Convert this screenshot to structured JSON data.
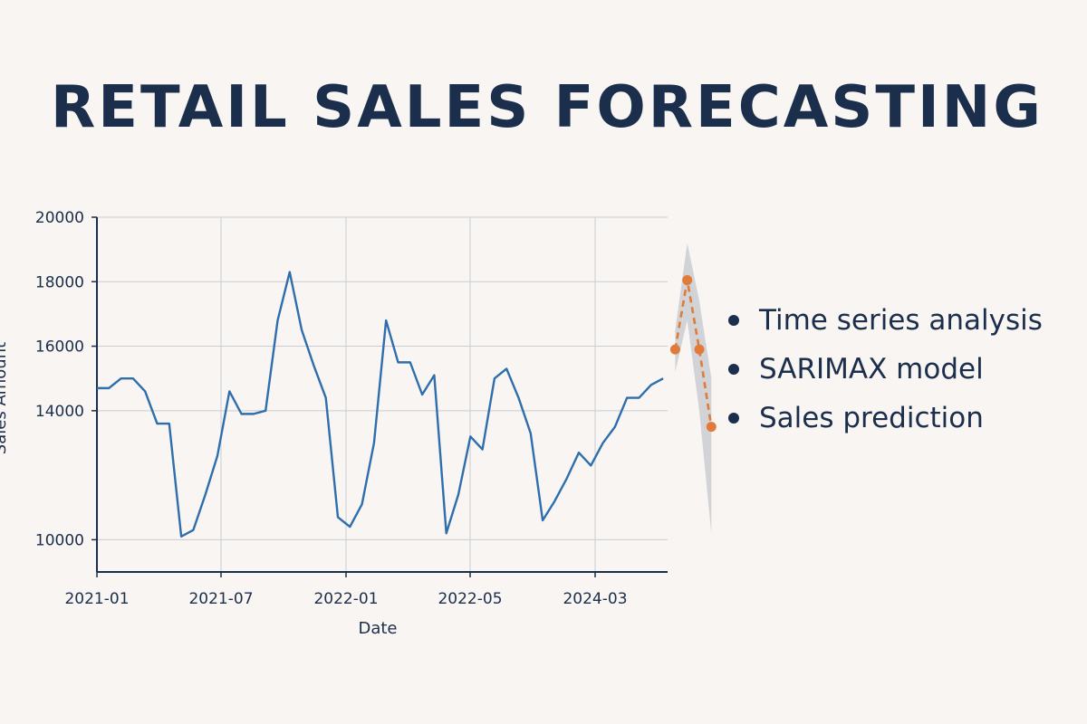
{
  "header": {
    "title": "RETAIL SALES FORECASTING"
  },
  "bullets": [
    "Time series analysis",
    "SARIMAX model",
    "Sales prediction"
  ],
  "colors": {
    "title": "#1b2e4b",
    "history": "#2f6ead",
    "forecast": "#e07b39",
    "confidence_band": "#c7cbcf",
    "grid": "#c9cdd1",
    "background": "#f8f5f3"
  },
  "chart_data": {
    "type": "line",
    "title": "",
    "xlabel": "Date",
    "ylabel": "Sales Amount",
    "x_tick_labels": [
      "2021-01",
      "2021-07",
      "2022-01",
      "2022-05",
      "2024-03"
    ],
    "y_tick_labels": [
      "10000",
      "14000",
      "16000",
      "18000",
      "20000"
    ],
    "ylim": [
      9000,
      20000
    ],
    "grid": true,
    "legend": "none",
    "series": [
      {
        "role": "history",
        "style": "solid",
        "x": [
          0,
          1,
          2,
          3,
          4,
          5,
          6,
          7,
          8,
          9,
          10,
          11,
          12,
          13,
          14,
          15,
          16,
          17,
          18,
          19,
          20,
          21,
          22,
          23,
          24,
          25,
          26,
          27,
          28,
          29,
          30,
          31,
          32,
          33,
          34,
          35,
          36,
          37,
          38,
          39,
          40,
          41,
          42,
          43,
          44,
          45,
          46,
          47
        ],
        "y": [
          14700,
          14700,
          15000,
          15000,
          14600,
          13600,
          13600,
          10100,
          10300,
          11400,
          12600,
          14600,
          13900,
          13900,
          14000,
          16800,
          18300,
          16500,
          15400,
          14400,
          10700,
          10400,
          11100,
          13000,
          16800,
          15500,
          15500,
          14500,
          15100,
          10200,
          11400,
          13200,
          12800,
          15000,
          15300,
          14400,
          13300,
          10600,
          11200,
          11900,
          12700,
          12300,
          13000,
          13500,
          14400,
          14400,
          14800,
          15000
        ]
      },
      {
        "role": "forecast",
        "style": "dashed",
        "x": [
          48,
          49,
          50,
          51
        ],
        "y": [
          15900,
          18050,
          15900,
          13500
        ]
      }
    ],
    "confidence_band": {
      "x": [
        48,
        49,
        50,
        51
      ],
      "upper": [
        16500,
        19200,
        17400,
        15000
      ],
      "lower": [
        15200,
        16800,
        14000,
        10200
      ]
    }
  }
}
